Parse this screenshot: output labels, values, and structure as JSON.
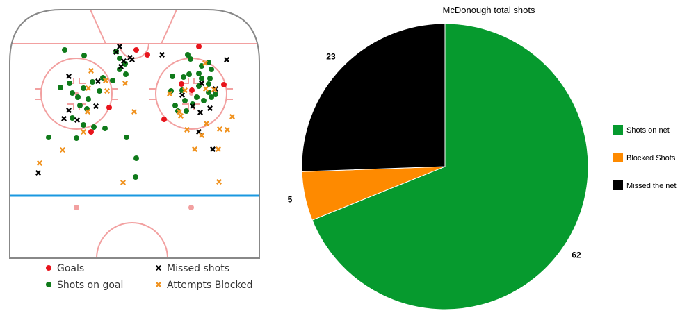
{
  "chart_data": [
    {
      "type": "scatter",
      "legend": [
        {
          "key": "goals",
          "label": "Goals",
          "color": "#e8141c",
          "marker": "circle"
        },
        {
          "key": "on_goal",
          "label": "Shots on goal",
          "color": "#0f7a1a",
          "marker": "circle"
        },
        {
          "key": "missed",
          "label": "Missed shots",
          "color": "#000000",
          "marker": "cross"
        },
        {
          "key": "blocked",
          "label": "Attempts Blocked",
          "color": "#f0921e",
          "marker": "cross"
        }
      ],
      "series": [
        {
          "key": "goals",
          "points": [
            [
              196,
              72
            ],
            [
              212,
              79
            ],
            [
              286,
              67
            ],
            [
              261,
              121
            ],
            [
              276,
              130
            ],
            [
              322,
              122
            ],
            [
              157,
              155
            ],
            [
              131,
              190
            ],
            [
              236,
              172
            ]
          ]
        },
        {
          "key": "on_goal",
          "points": [
            [
              93,
              72
            ],
            [
              121,
              80
            ],
            [
              167,
              74
            ],
            [
              172,
              84
            ],
            [
              180,
              92
            ],
            [
              172,
              100
            ],
            [
              181,
              107
            ],
            [
              162,
              116
            ],
            [
              148,
              112
            ],
            [
              133,
              118
            ],
            [
              120,
              127
            ],
            [
              100,
              120
            ],
            [
              87,
              126
            ],
            [
              104,
              134
            ],
            [
              143,
              131
            ],
            [
              112,
              140
            ],
            [
              127,
              143
            ],
            [
              115,
              152
            ],
            [
              125,
              157
            ],
            [
              104,
              170
            ],
            [
              120,
              180
            ],
            [
              135,
              183
            ],
            [
              151,
              185
            ],
            [
              110,
              199
            ],
            [
              70,
              198
            ],
            [
              182,
              198
            ],
            [
              196,
              228
            ],
            [
              195,
              255
            ],
            [
              270,
              79
            ],
            [
              274,
              85
            ],
            [
              300,
              90
            ],
            [
              290,
              95
            ],
            [
              304,
              100
            ],
            [
              286,
              106
            ],
            [
              290,
              113
            ],
            [
              302,
              113
            ],
            [
              264,
              111
            ],
            [
              272,
              107
            ],
            [
              248,
              110
            ],
            [
              262,
              130
            ],
            [
              283,
              140
            ],
            [
              300,
              133
            ],
            [
              310,
              136
            ],
            [
              304,
              140
            ],
            [
              266,
              145
            ],
            [
              277,
              150
            ],
            [
              252,
              152
            ],
            [
              256,
              160
            ],
            [
              268,
              160
            ],
            [
              293,
              145
            ],
            [
              286,
              124
            ],
            [
              246,
              131
            ],
            [
              300,
              121
            ]
          ]
        },
        {
          "key": "missed",
          "points": [
            [
              172,
              67
            ],
            [
              167,
              75
            ],
            [
              178,
              88
            ],
            [
              187,
              83
            ],
            [
              190,
              86
            ],
            [
              174,
              96
            ],
            [
              233,
              79
            ],
            [
              326,
              86
            ],
            [
              99,
              110
            ],
            [
              141,
              117
            ],
            [
              262,
              137
            ],
            [
              290,
              120
            ],
            [
              310,
              128
            ],
            [
              302,
              156
            ],
            [
              288,
              162
            ],
            [
              277,
              153
            ],
            [
              99,
              159
            ],
            [
              92,
              171
            ],
            [
              138,
              153
            ],
            [
              111,
              173
            ],
            [
              286,
              190
            ],
            [
              306,
              215
            ],
            [
              55,
              249
            ]
          ]
        },
        {
          "key": "blocked",
          "points": [
            [
              131,
              102
            ],
            [
              180,
              120
            ],
            [
              152,
              116
            ],
            [
              127,
              127
            ],
            [
              154,
              131
            ],
            [
              126,
              161
            ],
            [
              193,
              161
            ],
            [
              244,
              135
            ],
            [
              258,
              161
            ],
            [
              260,
              167
            ],
            [
              266,
              130
            ],
            [
              295,
              91
            ],
            [
              296,
              128
            ],
            [
              308,
              129
            ],
            [
              334,
              168
            ],
            [
              316,
              186
            ],
            [
              327,
              187
            ],
            [
              297,
              178
            ],
            [
              269,
              187
            ],
            [
              290,
              195
            ],
            [
              280,
              215
            ],
            [
              314,
              215
            ],
            [
              315,
              262
            ],
            [
              177,
              263
            ],
            [
              90,
              216
            ],
            [
              57,
              235
            ],
            [
              120,
              190
            ]
          ]
        }
      ]
    },
    {
      "type": "pie",
      "title": "McDonough total shots",
      "slices": [
        {
          "label": "Shots on net",
          "value": 62,
          "color": "#069a2e"
        },
        {
          "label": "Blocked Shots",
          "value": 5,
          "color": "#fe8a00"
        },
        {
          "label": "Missed the net",
          "value": 23,
          "color": "#000000"
        }
      ]
    }
  ]
}
